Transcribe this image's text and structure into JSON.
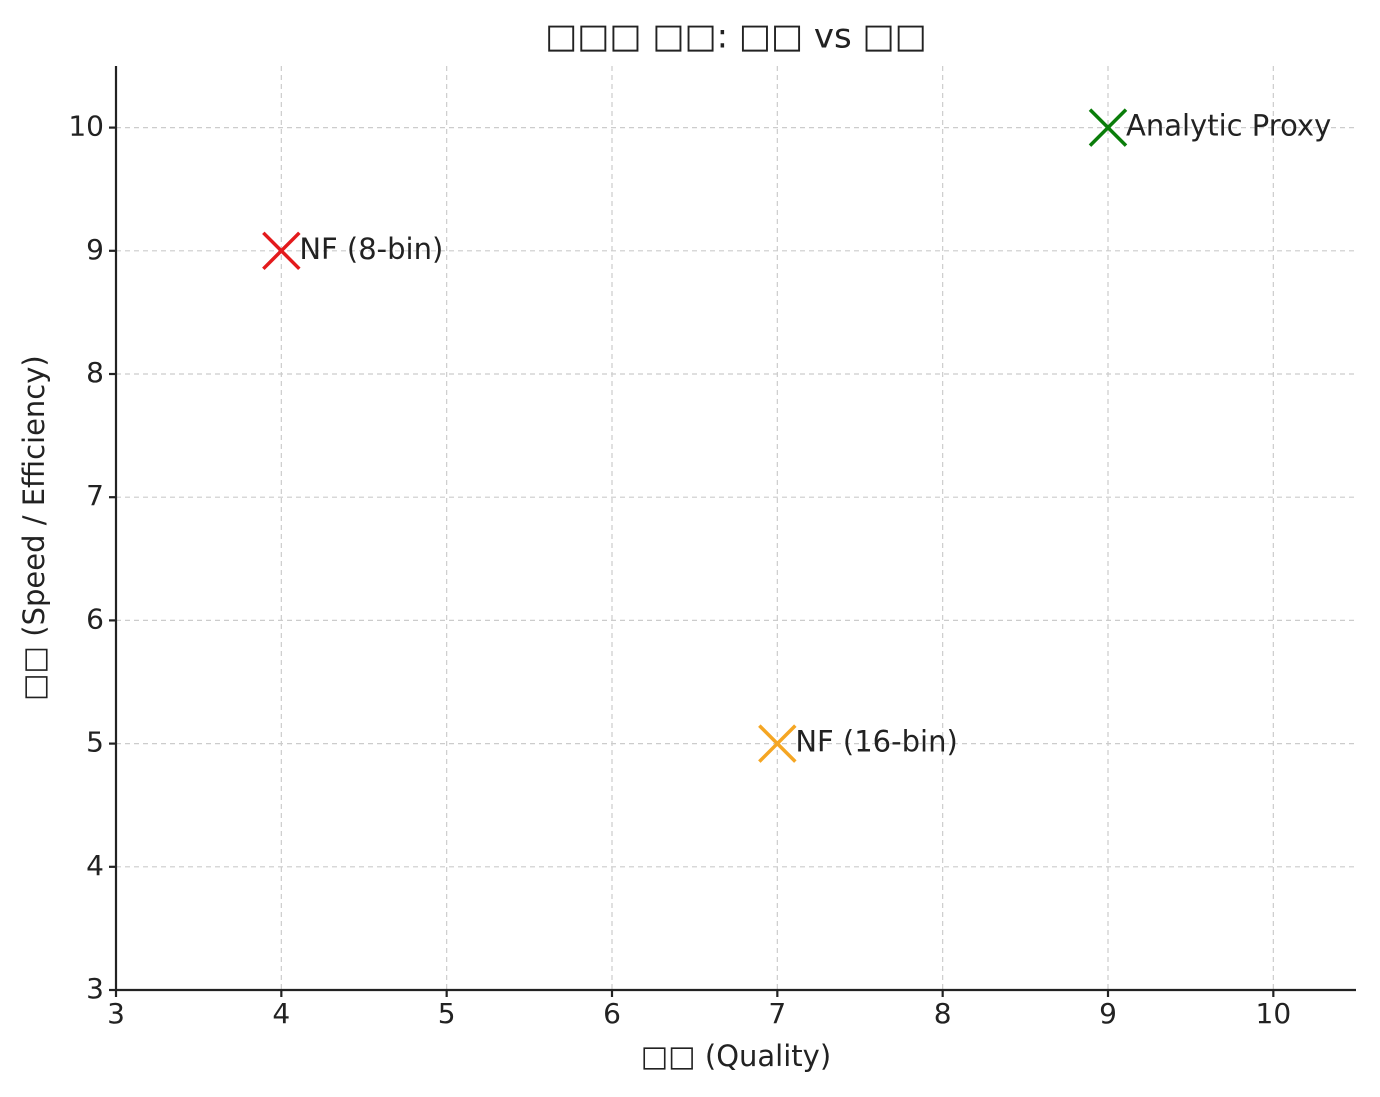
{
  "chart_data": {
    "type": "scatter",
    "title": "□□□ □□: □□ vs □□",
    "x_label": "□□ (Quality)",
    "y_label": "□□ (Speed / Efficiency)",
    "series": [
      {
        "name": "NF (8-bin)",
        "color": "#e31a1c",
        "x": [
          4
        ],
        "values": [
          9
        ]
      },
      {
        "name": "NF (16-bin)",
        "color": "#f5a623",
        "x": [
          7
        ],
        "values": [
          5
        ]
      },
      {
        "name": "Analytic Proxy",
        "color": "#0a7d0a",
        "x": [
          9
        ],
        "values": [
          10
        ]
      }
    ],
    "xlim": [
      3,
      10.5
    ],
    "ylim": [
      3,
      10.5
    ],
    "xticks": [
      3,
      4,
      5,
      6,
      7,
      8,
      9,
      10
    ],
    "yticks": [
      3,
      4,
      5,
      6,
      7,
      8,
      9,
      10
    ],
    "grid": true
  }
}
